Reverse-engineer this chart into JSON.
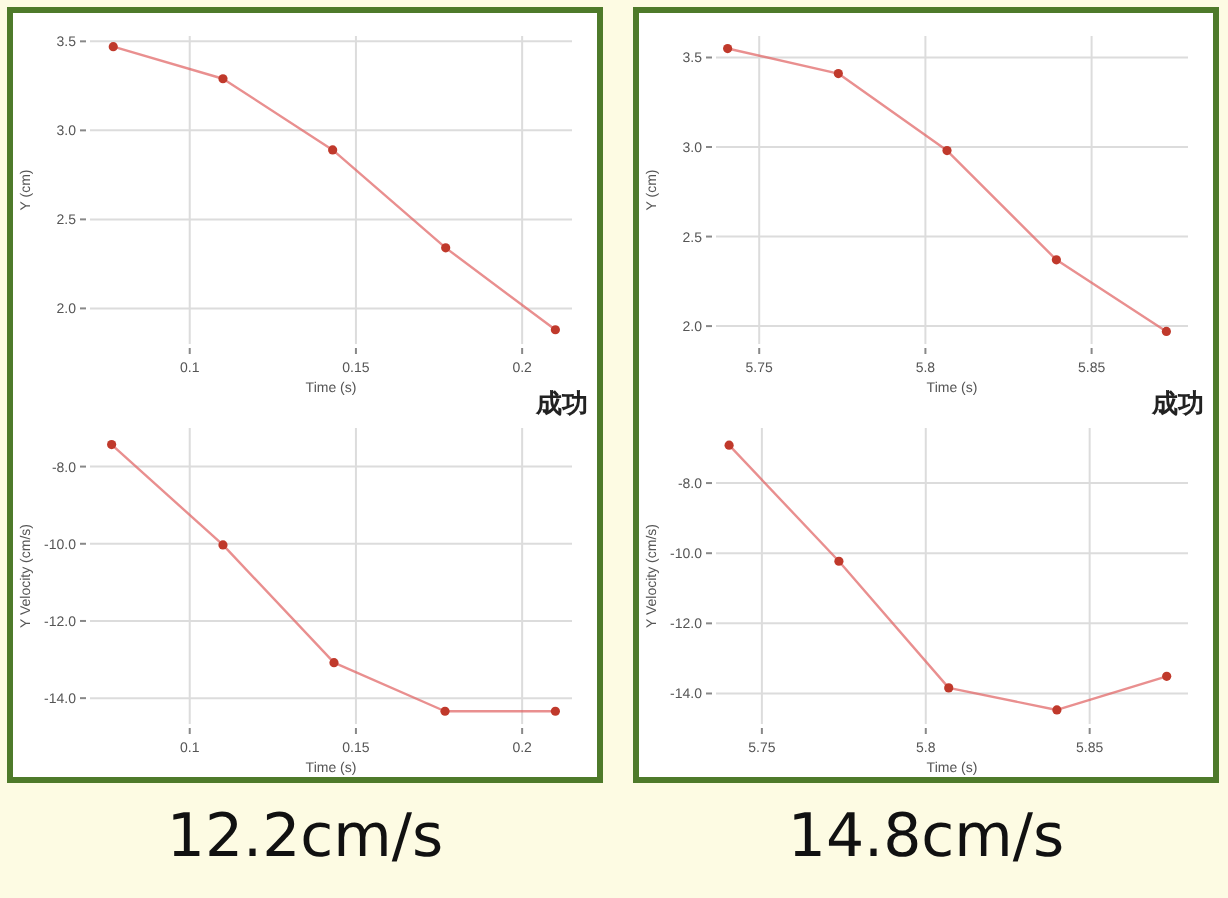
{
  "chart_data": [
    {
      "type": "line",
      "xlabel": "Time (s)",
      "ylabel": "Y (cm)",
      "x": [
        0.077,
        0.11,
        0.143,
        0.177,
        0.21
      ],
      "series": [
        {
          "color": "#e06060",
          "values": [
            3.47,
            3.29,
            2.89,
            2.34,
            1.88
          ]
        }
      ],
      "xlim": [
        0.07,
        0.215
      ],
      "ylim": [
        1.8,
        3.53
      ],
      "xticks": [
        0.1,
        0.15,
        0.2
      ],
      "yticks": [
        {
          "value": 2,
          "label": "2.0"
        },
        {
          "value": 2.5,
          "label": "2.5"
        },
        {
          "value": 3,
          "label": "3.0"
        },
        {
          "value": 3.5,
          "label": "3.5"
        }
      ],
      "grid": true,
      "marker": "circle",
      "line_style": "solid",
      "annotations": [
        "成功"
      ]
    },
    {
      "type": "line",
      "xlabel": "Time (s)",
      "ylabel": "Y (cm)",
      "x": [
        5.7405,
        5.7738,
        5.8065,
        5.8394,
        5.8725
      ],
      "series": [
        {
          "color": "#e06060",
          "values": [
            3.55,
            3.41,
            2.98,
            2.37,
            1.97
          ]
        }
      ],
      "xlim": [
        5.737,
        5.879
      ],
      "ylim": [
        1.9,
        3.62
      ],
      "xticks": [
        5.75,
        5.8,
        5.85
      ],
      "yticks": [
        {
          "value": 2,
          "label": "2.0"
        },
        {
          "value": 2.5,
          "label": "2.5"
        },
        {
          "value": 3,
          "label": "3.0"
        },
        {
          "value": 3.5,
          "label": "3.5"
        }
      ],
      "grid": true,
      "marker": "circle",
      "line_style": "solid",
      "annotations": [
        "成功"
      ]
    },
    {
      "type": "line",
      "xlabel": "Time (s)",
      "ylabel": "Y Velocity (cm/s)",
      "x": [
        0.0765,
        0.11,
        0.1434,
        0.1768,
        0.21
      ],
      "series": [
        {
          "color": "#e06060",
          "values": [
            -7.43,
            -10.03,
            -13.08,
            -14.34,
            -14.34
          ]
        }
      ],
      "xlim": [
        0.07,
        0.215
      ],
      "ylim": [
        -14.67,
        -7.0
      ],
      "xticks": [
        0.1,
        0.15,
        0.2
      ],
      "yticks": [
        {
          "value": -14,
          "label": "-14.0"
        },
        {
          "value": -12,
          "label": "-12.0"
        },
        {
          "value": -10,
          "label": "-10.0"
        },
        {
          "value": -8,
          "label": "-8.0"
        }
      ],
      "grid": true,
      "marker": "circle",
      "line_style": "solid",
      "annotations": [
        "12.2cm/s"
      ]
    },
    {
      "type": "line",
      "xlabel": "Time (s)",
      "ylabel": "Y Velocity (cm/s)",
      "x": [
        5.74,
        5.7735,
        5.807,
        5.84,
        5.8735
      ],
      "series": [
        {
          "color": "#e06060",
          "values": [
            -6.92,
            -10.23,
            -13.84,
            -14.47,
            -13.51
          ]
        }
      ],
      "xlim": [
        5.736,
        5.88
      ],
      "ylim": [
        -14.87,
        -6.43
      ],
      "xticks": [
        5.75,
        5.8,
        5.85
      ],
      "yticks": [
        {
          "value": -14,
          "label": "-14.0"
        },
        {
          "value": -12,
          "label": "-12.0"
        },
        {
          "value": -10,
          "label": "-10.0"
        },
        {
          "value": -8,
          "label": "-8.0"
        }
      ],
      "grid": true,
      "marker": "circle",
      "line_style": "solid",
      "annotations": [
        "14.8cm/s"
      ]
    }
  ]
}
